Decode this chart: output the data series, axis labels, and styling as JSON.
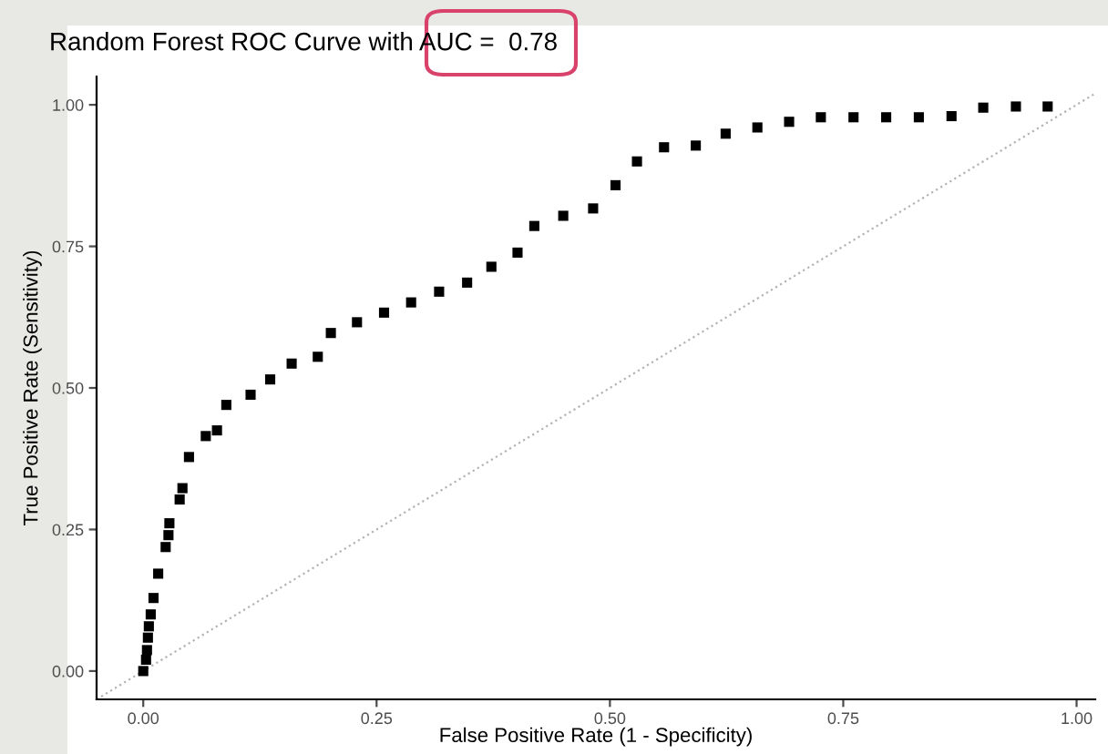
{
  "chart_data": {
    "type": "scatter",
    "title": "Random Forest ROC Curve with AUC =  0.78",
    "xlabel": "False Positive Rate (1 - Specificity)",
    "ylabel": "True Positive Rate (Sensitivity)",
    "x": [
      0.0,
      0.003,
      0.004,
      0.005,
      0.006,
      0.008,
      0.011,
      0.016,
      0.024,
      0.027,
      0.028,
      0.039,
      0.042,
      0.049,
      0.067,
      0.079,
      0.089,
      0.115,
      0.136,
      0.159,
      0.187,
      0.201,
      0.229,
      0.258,
      0.287,
      0.317,
      0.347,
      0.373,
      0.401,
      0.419,
      0.45,
      0.482,
      0.506,
      0.529,
      0.558,
      0.592,
      0.624,
      0.658,
      0.692,
      0.726,
      0.761,
      0.796,
      0.831,
      0.866,
      0.9,
      0.935,
      0.969
    ],
    "series": [
      {
        "color": "#000000",
        "marker": "square",
        "values": [
          0.0,
          0.02,
          0.037,
          0.059,
          0.079,
          0.1,
          0.129,
          0.172,
          0.219,
          0.24,
          0.261,
          0.303,
          0.323,
          0.378,
          0.415,
          0.425,
          0.47,
          0.488,
          0.515,
          0.543,
          0.555,
          0.597,
          0.616,
          0.633,
          0.651,
          0.67,
          0.686,
          0.714,
          0.739,
          0.786,
          0.804,
          0.817,
          0.858,
          0.9,
          0.925,
          0.928,
          0.949,
          0.96,
          0.97,
          0.978,
          0.978,
          0.978,
          0.978,
          0.98,
          0.995,
          0.997,
          0.997
        ]
      },
      {
        "type": "line",
        "color": "#b3b3b3",
        "line_style": "dotted",
        "x": [
          -0.05,
          1.02
        ],
        "values": [
          -0.05,
          1.02
        ]
      }
    ],
    "xlim": [
      -0.05,
      1.02
    ],
    "ylim": [
      -0.05,
      1.05
    ],
    "xticks": [
      {
        "value": 0,
        "label": "0.00"
      },
      {
        "value": 0.25,
        "label": "0.25"
      },
      {
        "value": 0.5,
        "label": "0.50"
      },
      {
        "value": 0.75,
        "label": "0.75"
      },
      {
        "value": 1,
        "label": "1.00"
      }
    ],
    "yticks": [
      {
        "value": 0,
        "label": "0.00"
      },
      {
        "value": 0.25,
        "label": "0.25"
      },
      {
        "value": 0.5,
        "label": "0.50"
      },
      {
        "value": 0.75,
        "label": "0.75"
      },
      {
        "value": 1,
        "label": "1.00"
      }
    ],
    "grid": false,
    "legend": false
  }
}
